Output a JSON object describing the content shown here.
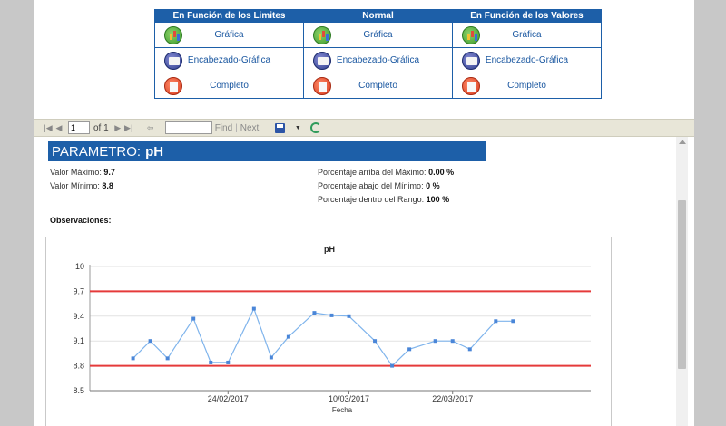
{
  "options_table": {
    "headers": [
      "En Función de los Limites",
      "Normal",
      "En Función de los Valores"
    ],
    "rows": [
      {
        "label": "Gráfica",
        "icon": "chart-icon"
      },
      {
        "label": "Encabezado-Gráfica",
        "icon": "header-chart-icon"
      },
      {
        "label": "Completo",
        "icon": "full-report-icon"
      }
    ]
  },
  "toolbar": {
    "page_value": "1",
    "of_label": "of 1",
    "find_label": "Find",
    "separator": "|",
    "next_label": "Next"
  },
  "report": {
    "param_label": "PARAMETRO:",
    "param_value": "pH",
    "max_label": "Valor Máximo:",
    "max_value": "9.7",
    "min_label": "Valor Mínimo:",
    "min_value": "8.8",
    "above_label": "Porcentaje arriba del Máximo:",
    "above_value": "0.00 %",
    "below_label": "Porcentaje abajo del Mínimo:",
    "below_value": "0 %",
    "within_label": "Porcentaje dentro del Rango:",
    "within_value": "100 %",
    "obs_label": "Observaciones:"
  },
  "chart_data": {
    "type": "line",
    "title": "pH",
    "xlabel": "Fecha",
    "ylabel": "",
    "ylim": [
      8.5,
      10
    ],
    "yticks": [
      "10",
      "9.7",
      "9.4",
      "9.1",
      "8.8",
      "8.5"
    ],
    "xtick_labels": [
      "24/02/2017",
      "10/03/2017",
      "22/03/2017"
    ],
    "limit_lines": [
      9.7,
      8.8
    ],
    "colors": {
      "series": "#7fb4ec",
      "limits": "#e53a3a"
    },
    "x": [
      "2017-02-13",
      "2017-02-15",
      "2017-02-17",
      "2017-02-20",
      "2017-02-22",
      "2017-02-24",
      "2017-02-27",
      "2017-03-01",
      "2017-03-03",
      "2017-03-06",
      "2017-03-08",
      "2017-03-10",
      "2017-03-13",
      "2017-03-15",
      "2017-03-17",
      "2017-03-20",
      "2017-03-22",
      "2017-03-24",
      "2017-03-27",
      "2017-03-29"
    ],
    "values": [
      8.89,
      9.1,
      8.89,
      9.37,
      8.84,
      8.84,
      9.49,
      8.9,
      9.15,
      9.44,
      9.41,
      9.4,
      9.1,
      8.8,
      9.0,
      9.1,
      9.1,
      9.0,
      9.34,
      9.34
    ]
  }
}
